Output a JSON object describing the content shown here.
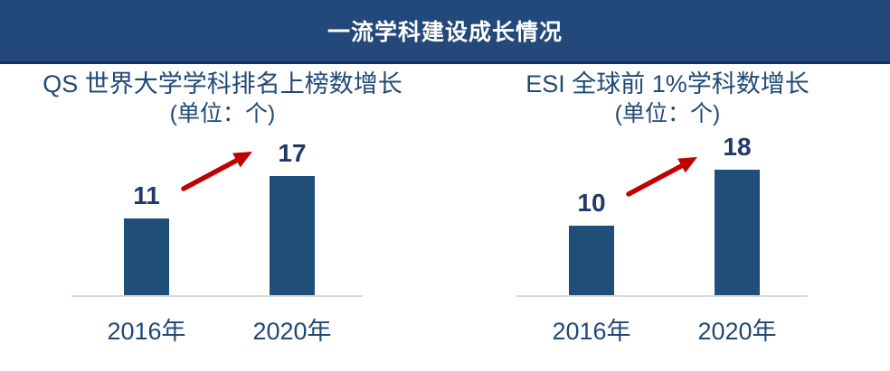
{
  "header": {
    "title": "一流学科建设成长情况",
    "bg_color": "#23487A",
    "border_color": "#16325C",
    "text_color": "#FFFFFF"
  },
  "chart_data": [
    {
      "type": "bar",
      "title": "QS 世界大学学科排名上榜数增长",
      "subtitle": "(单位：个)",
      "categories": [
        "2016年",
        "2020年"
      ],
      "values": [
        11,
        17
      ],
      "ylim": [
        0,
        20
      ],
      "grid": false,
      "legend": false,
      "annotation": "red growth arrow from first bar to second bar",
      "bar_color": "#1F4E79",
      "title_color": "#1F4977",
      "category_color": "#1F4977",
      "value_label_color": "#203A68",
      "axis_color": "#D9D9D9",
      "arrow_color": "#C00000"
    },
    {
      "type": "bar",
      "title": "ESI 全球前 1%学科数增长",
      "subtitle": "(单位：个)",
      "categories": [
        "2016年",
        "2020年"
      ],
      "values": [
        10,
        18
      ],
      "ylim": [
        0,
        20
      ],
      "grid": false,
      "legend": false,
      "annotation": "red growth arrow from first bar to second bar",
      "bar_color": "#1F4E79",
      "title_color": "#1F4977",
      "category_color": "#1F4977",
      "value_label_color": "#203A68",
      "axis_color": "#D9D9D9",
      "arrow_color": "#C00000"
    }
  ]
}
